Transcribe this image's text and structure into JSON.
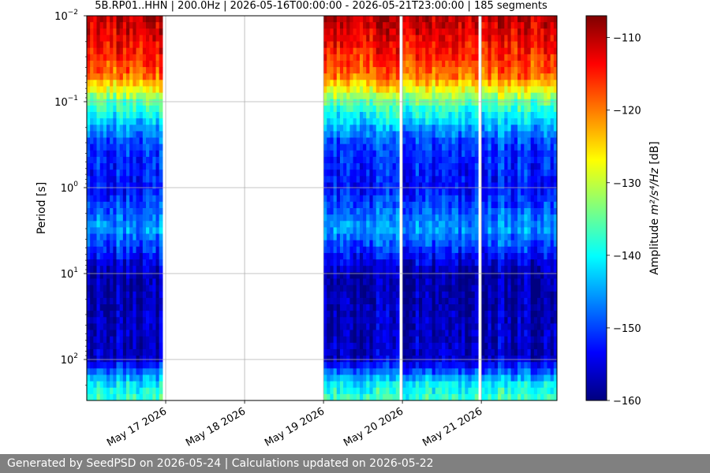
{
  "chart_data": {
    "type": "heatmap",
    "title": "5B.RP01..HHN | 200.0Hz | 2026-05-16T00:00:00 - 2026-05-21T23:00:00 | 185 segments",
    "ylabel": "Period [s]",
    "yscale": "log",
    "ylim_period_s": [
      0.01,
      300
    ],
    "y_ticks": [
      {
        "value": 0.01,
        "base": "10",
        "exp": "−2"
      },
      {
        "value": 0.1,
        "base": "10",
        "exp": "−1"
      },
      {
        "value": 1,
        "base": "10",
        "exp": "0"
      },
      {
        "value": 10,
        "base": "10",
        "exp": "1"
      },
      {
        "value": 100,
        "base": "10",
        "exp": "2"
      }
    ],
    "x_start": "2026-05-16T00:00:00",
    "x_end": "2026-05-21T23:00:00",
    "x_ticks": [
      {
        "label": "May 17 2026",
        "date": "2026-05-17T00:00:00"
      },
      {
        "label": "May 18 2026",
        "date": "2026-05-18T00:00:00"
      },
      {
        "label": "May 19 2026",
        "date": "2026-05-19T00:00:00"
      },
      {
        "label": "May 20 2026",
        "date": "2026-05-20T00:00:00"
      },
      {
        "label": "May 21 2026",
        "date": "2026-05-21T00:00:00"
      }
    ],
    "data_segments": [
      {
        "start": "2026-05-16T00:00:00",
        "end": "2026-05-16T23:00:00"
      },
      {
        "start": "2026-05-19T00:00:00",
        "end": "2026-05-19T23:00:00"
      },
      {
        "start": "2026-05-20T00:00:00",
        "end": "2026-05-20T23:00:00"
      },
      {
        "start": "2026-05-21T00:00:00",
        "end": "2026-05-21T23:00:00"
      }
    ],
    "segments_count": 185,
    "typical_profile_db": [
      {
        "period_s": 0.01,
        "db": -110
      },
      {
        "period_s": 0.02,
        "db": -113
      },
      {
        "period_s": 0.05,
        "db": -119
      },
      {
        "period_s": 0.1,
        "db": -135
      },
      {
        "period_s": 0.3,
        "db": -150
      },
      {
        "period_s": 1,
        "db": -153
      },
      {
        "period_s": 3,
        "db": -145
      },
      {
        "period_s": 10,
        "db": -158
      },
      {
        "period_s": 100,
        "db": -156
      },
      {
        "period_s": 200,
        "db": -140
      },
      {
        "period_s": 300,
        "db": -137
      }
    ],
    "colorbar": {
      "label_text": "Amplitude",
      "label_math": "m²/s⁴/Hz",
      "label_unit": "[dB]",
      "range": [
        -160,
        -107
      ],
      "ticks": [
        "−110",
        "−120",
        "−130",
        "−140",
        "−150",
        "−160"
      ],
      "tick_values": [
        -110,
        -120,
        -130,
        -140,
        -150,
        -160
      ],
      "colormap": "jet"
    },
    "grid": true
  },
  "footer": {
    "text": "Generated by SeedPSD on 2026-05-24 | Calculations updated on 2026-05-22"
  }
}
